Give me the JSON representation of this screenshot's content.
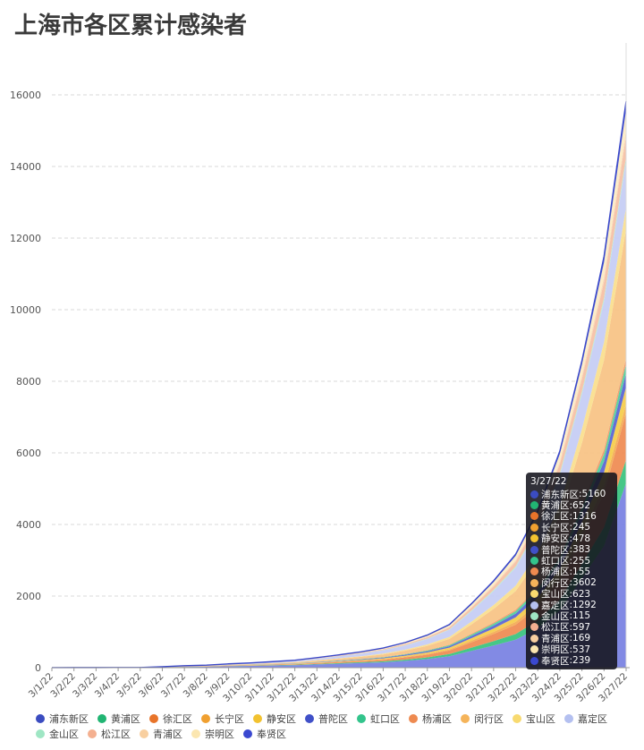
{
  "title": "上海市各区累计感染者",
  "tooltip": {
    "date": "3/27/22",
    "rows": [
      {
        "name": "浦东新区",
        "value": "5160",
        "color": "#3b4cc0"
      },
      {
        "name": "黄浦区",
        "value": "652",
        "color": "#21b573"
      },
      {
        "name": "徐汇区",
        "value": "1316",
        "color": "#e8742a"
      },
      {
        "name": "长宁区",
        "value": "245",
        "color": "#f0a030"
      },
      {
        "name": "静安区",
        "value": "478",
        "color": "#f2c230"
      },
      {
        "name": "普陀区",
        "value": "383",
        "color": "#4050c8"
      },
      {
        "name": "虹口区",
        "value": "255",
        "color": "#33c48c"
      },
      {
        "name": "杨浦区",
        "value": "155",
        "color": "#ee8a50"
      },
      {
        "name": "闵行区",
        "value": "3602",
        "color": "#f5b45a"
      },
      {
        "name": "宝山区",
        "value": "623",
        "color": "#f8da70"
      },
      {
        "name": "嘉定区",
        "value": "1292",
        "color": "#b4c0f0"
      },
      {
        "name": "金山区",
        "value": "115",
        "color": "#9fe6c4"
      },
      {
        "name": "松江区",
        "value": "597",
        "color": "#f4b090"
      },
      {
        "name": "青浦区",
        "value": "169",
        "color": "#f8cfa0"
      },
      {
        "name": "崇明区",
        "value": "537",
        "color": "#fbe6b0"
      },
      {
        "name": "奉贤区",
        "value": "239",
        "color": "#3a48d0"
      }
    ]
  },
  "legend": {
    "row1": [
      "浦东新区",
      "黄浦区",
      "徐汇区",
      "长宁区",
      "静安区",
      "普陀区",
      "虹口区",
      "杨浦区",
      "闵行区",
      "宝山区",
      "嘉定区"
    ],
    "row2": [
      "金山区",
      "松江区",
      "青浦区",
      "崇明区",
      "奉贤区"
    ]
  },
  "chart_data": {
    "type": "area",
    "stacked": true,
    "title": "上海市各区累计感染者",
    "x": [
      "3/1/22",
      "3/2/22",
      "3/3/22",
      "3/4/22",
      "3/5/22",
      "3/6/22",
      "3/7/22",
      "3/8/22",
      "3/9/22",
      "3/10/22",
      "3/11/22",
      "3/12/22",
      "3/13/22",
      "3/14/22",
      "3/15/22",
      "3/16/22",
      "3/17/22",
      "3/18/22",
      "3/19/22",
      "3/20/22",
      "3/21/22",
      "3/22/22",
      "3/23/22",
      "3/24/22",
      "3/25/22",
      "3/26/22",
      "3/27/22"
    ],
    "ylim": [
      0,
      16000
    ],
    "yticks": [
      0,
      2000,
      4000,
      6000,
      8000,
      10000,
      12000,
      14000,
      16000
    ],
    "grid": true,
    "legend_position": "bottom",
    "series": [
      {
        "name": "浦东新区",
        "color": "#7b84e3",
        "values": [
          1,
          2,
          2,
          3,
          3,
          10,
          20,
          25,
          40,
          50,
          60,
          70,
          90,
          110,
          130,
          150,
          190,
          240,
          320,
          470,
          620,
          780,
          1100,
          1600,
          2500,
          3400,
          5160
        ]
      },
      {
        "name": "黄浦区",
        "color": "#3cc481",
        "values": [
          0,
          0,
          0,
          0,
          0,
          1,
          2,
          3,
          5,
          6,
          8,
          10,
          14,
          18,
          22,
          28,
          36,
          46,
          60,
          90,
          120,
          160,
          220,
          300,
          400,
          520,
          652
        ]
      },
      {
        "name": "徐汇区",
        "color": "#ef8d55",
        "values": [
          0,
          0,
          0,
          0,
          0,
          2,
          4,
          5,
          8,
          10,
          13,
          16,
          22,
          28,
          35,
          45,
          60,
          78,
          100,
          150,
          200,
          260,
          360,
          500,
          700,
          950,
          1316
        ]
      },
      {
        "name": "长宁区",
        "color": "#f3ae56",
        "values": [
          0,
          0,
          0,
          0,
          0,
          1,
          1,
          2,
          3,
          3,
          4,
          5,
          7,
          9,
          11,
          14,
          18,
          23,
          30,
          45,
          60,
          80,
          110,
          140,
          170,
          205,
          245
        ]
      },
      {
        "name": "静安区",
        "color": "#f5cd4e",
        "values": [
          0,
          0,
          0,
          0,
          0,
          1,
          2,
          3,
          4,
          5,
          6,
          8,
          11,
          14,
          18,
          23,
          30,
          38,
          50,
          70,
          95,
          125,
          170,
          230,
          300,
          380,
          478
        ]
      },
      {
        "name": "普陀区",
        "color": "#5c67d4",
        "values": [
          0,
          0,
          0,
          0,
          0,
          1,
          2,
          2,
          3,
          4,
          5,
          7,
          9,
          12,
          15,
          19,
          24,
          31,
          40,
          60,
          80,
          105,
          140,
          190,
          250,
          310,
          383
        ]
      },
      {
        "name": "虹口区",
        "color": "#55cf9c",
        "values": [
          0,
          0,
          0,
          0,
          0,
          1,
          1,
          2,
          2,
          3,
          4,
          5,
          6,
          8,
          10,
          13,
          16,
          21,
          27,
          40,
          54,
          70,
          95,
          125,
          160,
          205,
          255
        ]
      },
      {
        "name": "杨浦区",
        "color": "#f19c6c",
        "values": [
          0,
          0,
          0,
          0,
          0,
          0,
          1,
          1,
          2,
          2,
          3,
          3,
          4,
          5,
          6,
          8,
          10,
          13,
          17,
          24,
          32,
          42,
          57,
          75,
          97,
          124,
          155
        ]
      },
      {
        "name": "闵行区",
        "color": "#f8c487",
        "values": [
          0,
          0,
          0,
          0,
          0,
          3,
          6,
          8,
          12,
          15,
          20,
          25,
          35,
          45,
          55,
          70,
          90,
          120,
          160,
          260,
          380,
          520,
          760,
          1100,
          1700,
          2500,
          3602
        ]
      },
      {
        "name": "宝山区",
        "color": "#fadf8f",
        "values": [
          0,
          0,
          0,
          0,
          0,
          1,
          2,
          3,
          4,
          5,
          6,
          8,
          11,
          14,
          18,
          23,
          30,
          40,
          55,
          80,
          110,
          150,
          210,
          290,
          390,
          500,
          623
        ]
      },
      {
        "name": "嘉定区",
        "color": "#c6cef4",
        "values": [
          1,
          1,
          1,
          1,
          1,
          3,
          6,
          8,
          12,
          16,
          22,
          28,
          40,
          55,
          70,
          90,
          115,
          150,
          200,
          290,
          390,
          500,
          650,
          820,
          980,
          1140,
          1292
        ]
      },
      {
        "name": "金山区",
        "color": "#b4ecd2",
        "values": [
          0,
          0,
          0,
          0,
          0,
          0,
          1,
          1,
          1,
          2,
          2,
          3,
          4,
          5,
          6,
          7,
          9,
          11,
          14,
          20,
          27,
          35,
          46,
          60,
          76,
          95,
          115
        ]
      },
      {
        "name": "松江区",
        "color": "#f6c1a6",
        "values": [
          0,
          0,
          0,
          0,
          0,
          1,
          2,
          3,
          4,
          5,
          6,
          8,
          11,
          14,
          18,
          23,
          30,
          40,
          54,
          78,
          105,
          140,
          190,
          260,
          350,
          460,
          597
        ]
      },
      {
        "name": "青浦区",
        "color": "#fadab5",
        "values": [
          0,
          0,
          0,
          0,
          0,
          0,
          1,
          1,
          1,
          2,
          2,
          3,
          4,
          5,
          6,
          8,
          10,
          13,
          17,
          25,
          34,
          45,
          61,
          80,
          104,
          134,
          169
        ]
      },
      {
        "name": "崇明区",
        "color": "#fcecc5",
        "values": [
          0,
          0,
          0,
          0,
          0,
          1,
          2,
          2,
          3,
          4,
          5,
          7,
          9,
          12,
          15,
          19,
          25,
          33,
          44,
          62,
          84,
          112,
          150,
          200,
          290,
          400,
          537
        ]
      },
      {
        "name": "奉贤区",
        "color": "#4a57d6",
        "values": [
          0,
          0,
          0,
          0,
          0,
          0,
          1,
          1,
          2,
          2,
          3,
          3,
          4,
          5,
          7,
          8,
          10,
          13,
          17,
          25,
          34,
          45,
          61,
          82,
          110,
          165,
          239
        ]
      }
    ]
  }
}
